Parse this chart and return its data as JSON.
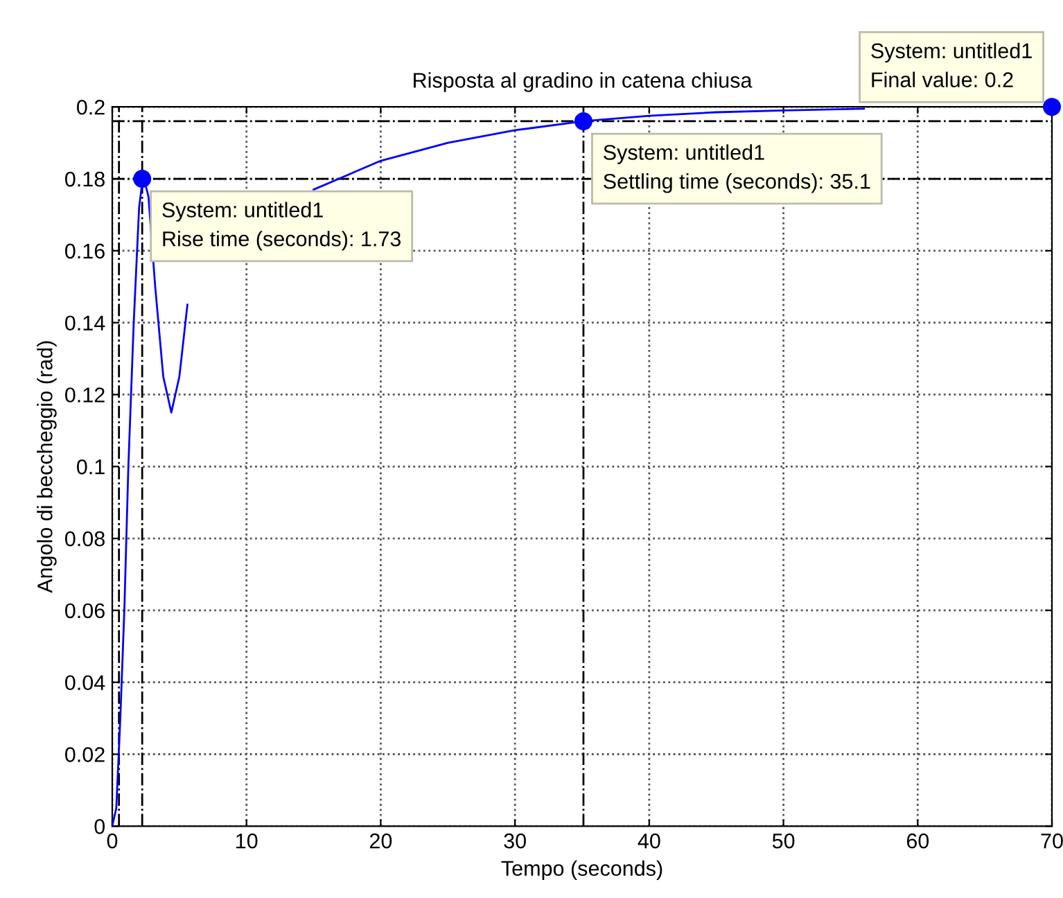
{
  "chart_data": {
    "type": "line",
    "title": "Risposta al gradino in catena chiusa",
    "xlabel": "Tempo (seconds)",
    "ylabel": "Angolo di beccheggio (rad)",
    "xlim": [
      0,
      70
    ],
    "ylim": [
      0,
      0.2
    ],
    "xticks": [
      0,
      10,
      20,
      30,
      40,
      50,
      60,
      70
    ],
    "yticks": [
      0,
      0.02,
      0.04,
      0.06,
      0.08,
      0.1,
      0.12,
      0.14,
      0.16,
      0.18,
      0.2
    ],
    "grid": true,
    "series": [
      {
        "color": "#0000ff",
        "marker": "none",
        "x": [
          0,
          0.3,
          0.6,
          0.9,
          1.2,
          1.6,
          2.0,
          2.3,
          2.7,
          3.2,
          3.8,
          4.4,
          5.0,
          5.6,
          6.2,
          7,
          9,
          12,
          15,
          20,
          25,
          30,
          35.1,
          40,
          45,
          50,
          56
        ],
        "values": [
          0,
          0.005,
          0.03,
          0.06,
          0.1,
          0.14,
          0.172,
          0.181,
          0.175,
          0.15,
          0.125,
          0.115,
          0.125,
          0.145,
          null,
          null,
          null,
          null,
          0.177,
          0.185,
          0.19,
          0.1935,
          0.196,
          0.1975,
          0.1985,
          0.199,
          0.1995
        ]
      },
      {
        "type": "scatter",
        "color": "#0000ff",
        "marker": "circle",
        "x": [
          2.23,
          35.1,
          70
        ],
        "values": [
          0.18,
          0.196,
          0.2
        ]
      }
    ],
    "ref_lines": [
      {
        "axis": "x",
        "value": 0.5,
        "color": "#000000",
        "line_style": "dashed"
      },
      {
        "axis": "x",
        "value": 2.23,
        "color": "#000000",
        "line_style": "dashed"
      },
      {
        "axis": "x",
        "value": 35.1,
        "color": "#000000",
        "line_style": "dashed"
      },
      {
        "axis": "y",
        "value": 0.18,
        "color": "#000000",
        "line_style": "dashed"
      },
      {
        "axis": "y",
        "value": 0.196,
        "color": "#000000",
        "line_style": "dashed"
      }
    ],
    "annotations": [
      {
        "text": "System: untitled1\nRise time (seconds): 1.73",
        "x": 2.23,
        "y": 0.18
      },
      {
        "text": "System: untitled1\nSettling time (seconds): 35.1",
        "x": 35.1,
        "y": 0.196
      },
      {
        "text": "System: untitled1\nFinal value: 0.2",
        "x": 70,
        "y": 0.2
      }
    ]
  }
}
